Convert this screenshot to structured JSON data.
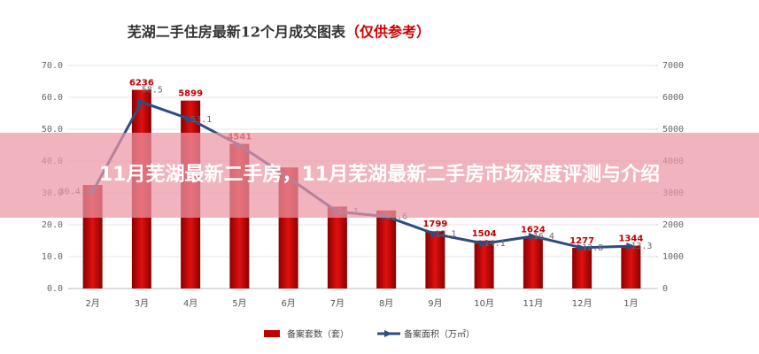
{
  "chart_data": {
    "type": "bar-line",
    "title": "芜湖二手住房最新12个月成交图表",
    "subtitle": "（仅供参考）",
    "categories": [
      "2月",
      "3月",
      "4月",
      "5月",
      "6月",
      "7月",
      "8月",
      "9月",
      "10月",
      "11月",
      "12月",
      "1月"
    ],
    "series": [
      {
        "name": "备案套数（套）",
        "color": "#c00000",
        "axis": "y2",
        "values": [
          3250,
          6236,
          5899,
          4541,
          3800,
          2570,
          2450,
          1799,
          1504,
          1624,
          1277,
          1344
        ],
        "value_labels": [
          null,
          "6236",
          "5899",
          "4541",
          null,
          null,
          null,
          "1799",
          "1504",
          "1624",
          "1277",
          "1344"
        ]
      },
      {
        "name": "备案面积（万㎡）",
        "color": "#2e4d7e",
        "values": [
          30.4,
          58.5,
          53.1,
          45.0,
          34.8,
          24.1,
          22.6,
          17.1,
          14.1,
          16.4,
          12.8,
          13.3
        ],
        "value_labels": [
          "30.4",
          "58.5",
          "53.1",
          null,
          null,
          "24.1",
          "22.6",
          "17.1",
          "14.1",
          "16.4",
          "12.8",
          "13.3"
        ]
      }
    ],
    "ylim": [
      0,
      70
    ],
    "yticks": [
      {
        "value": 0,
        "label": "0.0"
      },
      {
        "value": 10,
        "label": "10.0"
      },
      {
        "value": 20,
        "label": "20.0"
      },
      {
        "value": 30,
        "label": "30.0"
      },
      {
        "value": 40,
        "label": "40.0"
      },
      {
        "value": 50,
        "label": "50.0"
      },
      {
        "value": 60,
        "label": "60.0"
      },
      {
        "value": 70,
        "label": "70.0"
      }
    ],
    "y2lim": [
      0,
      7000
    ],
    "y2ticks": [
      0,
      1000,
      2000,
      3000,
      4000,
      5000,
      6000,
      7000
    ]
  },
  "banner": {
    "text": "11月芜湖最新二手房，11月芜湖最新二手房市场深度评测与介绍"
  }
}
